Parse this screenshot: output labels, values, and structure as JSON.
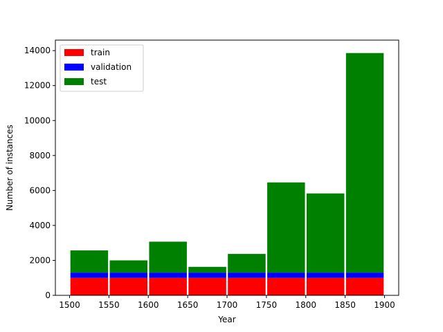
{
  "chart_data": {
    "type": "bar",
    "stacked": true,
    "title": "",
    "xlabel": "Year",
    "ylabel": "Number of instances",
    "bins": [
      [
        1500,
        1550
      ],
      [
        1550,
        1600
      ],
      [
        1600,
        1650
      ],
      [
        1650,
        1700
      ],
      [
        1700,
        1750
      ],
      [
        1750,
        1800
      ],
      [
        1800,
        1850
      ],
      [
        1850,
        1900
      ]
    ],
    "series": [
      {
        "name": "train",
        "color": "#ff0000",
        "values": [
          1000,
          1000,
          1000,
          1000,
          1000,
          1000,
          1000,
          1000
        ]
      },
      {
        "name": "validation",
        "color": "#0000ff",
        "values": [
          300,
          300,
          300,
          300,
          300,
          300,
          300,
          300
        ]
      },
      {
        "name": "test",
        "color": "#008000",
        "values": [
          1270,
          700,
          1770,
          330,
          1070,
          5160,
          4530,
          12560
        ]
      }
    ],
    "xlim": [
      1482,
      1918
    ],
    "ylim": [
      0,
      14600
    ],
    "xticks": [
      1500,
      1550,
      1600,
      1650,
      1700,
      1750,
      1800,
      1850,
      1900
    ],
    "xtick_labels": [
      "1500",
      "1550",
      "1600",
      "1650",
      "1700",
      "1750",
      "1800",
      "1850",
      "1900"
    ],
    "yticks": [
      0,
      2000,
      4000,
      6000,
      8000,
      10000,
      12000,
      14000
    ],
    "ytick_labels": [
      "0",
      "2000",
      "4000",
      "6000",
      "8000",
      "10000",
      "12000",
      "14000"
    ],
    "grid": false,
    "legend_position": "top-left"
  }
}
